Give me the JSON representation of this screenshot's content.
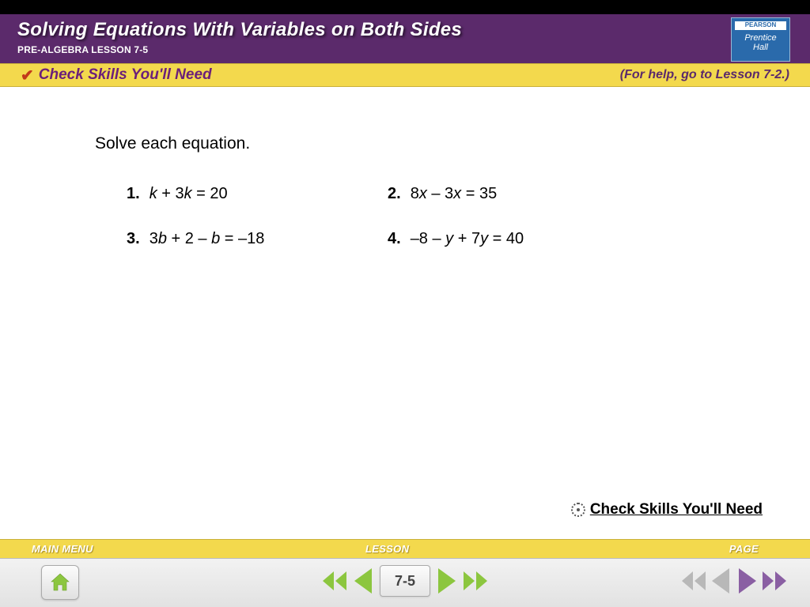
{
  "colors": {
    "header_bg": "#5b2a6b",
    "yellow_bar": "#f3d94d",
    "logo_bg": "#2a6aab",
    "check_text": "#6b1f7a",
    "arrow_green": "#8cc63f",
    "arrow_purple": "#8a5fa3",
    "arrow_gray": "#b8b8b8"
  },
  "header": {
    "title": "Solving Equations With Variables on Both Sides",
    "subtitle": "PRE-ALGEBRA LESSON 7-5"
  },
  "logo": {
    "brand": "PEARSON",
    "line1": "Prentice",
    "line2": "Hall"
  },
  "check_bar": {
    "label": "Check Skills You'll Need",
    "help_text": "(For help, go to Lesson 7-2.)"
  },
  "content": {
    "instruction": "Solve each equation.",
    "problems": [
      {
        "num": "1.",
        "equation_html": "<span class='var'>k</span> + 3<span class='var'>k</span> = 20"
      },
      {
        "num": "2.",
        "equation_html": "8<span class='var'>x</span> – 3<span class='var'>x</span> = 35"
      },
      {
        "num": "3.",
        "equation_html": "3<span class='var'>b</span> + 2 – <span class='var'>b</span> = –18"
      },
      {
        "num": "4.",
        "equation_html": "–8 – <span class='var'>y</span> + 7<span class='var'>y</span> = 40"
      }
    ]
  },
  "footer_link": "Check Skills You'll Need",
  "nav": {
    "main_menu": "MAIN MENU",
    "lesson": "LESSON",
    "page": "PAGE",
    "lesson_number": "7-5"
  }
}
